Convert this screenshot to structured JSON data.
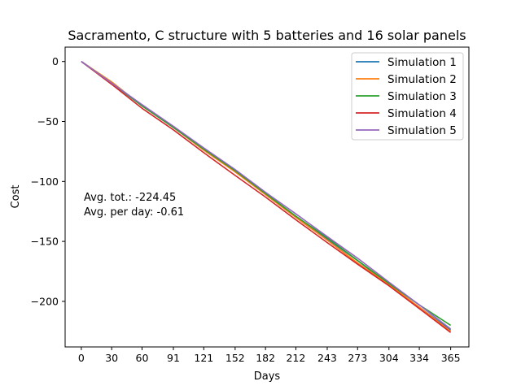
{
  "chart_data": {
    "type": "line",
    "title": "Sacramento, C structure with 5 batteries and 16 solar panels",
    "xlabel": "Days",
    "ylabel": "Cost",
    "xlim": [
      -16,
      383
    ],
    "ylim": [
      -238,
      12
    ],
    "xticks": [
      0,
      30,
      60,
      91,
      121,
      152,
      182,
      212,
      243,
      273,
      304,
      334,
      365
    ],
    "yticks": [
      0,
      -50,
      -100,
      -150,
      -200
    ],
    "grid": false,
    "legend_position": "top-right",
    "annotation": [
      "Avg. tot.: -224.45",
      "Avg. per day: -0.61"
    ],
    "series": [
      {
        "name": "Simulation 1",
        "color": "#1f77b4",
        "x": [
          0,
          30,
          60,
          91,
          121,
          152,
          182,
          212,
          243,
          273,
          304,
          334,
          365
        ],
        "y": [
          0,
          -18,
          -37,
          -55,
          -73,
          -92,
          -110,
          -129,
          -148,
          -166,
          -186,
          -205,
          -224
        ]
      },
      {
        "name": "Simulation 2",
        "color": "#ff7f0e",
        "x": [
          0,
          30,
          60,
          91,
          121,
          152,
          182,
          212,
          243,
          273,
          304,
          334,
          365
        ],
        "y": [
          0,
          -17,
          -37,
          -55,
          -74,
          -92,
          -111,
          -130,
          -149,
          -168,
          -186,
          -205,
          -225
        ]
      },
      {
        "name": "Simulation 3",
        "color": "#2ca02c",
        "x": [
          0,
          30,
          60,
          91,
          121,
          152,
          182,
          212,
          243,
          273,
          304,
          334,
          365
        ],
        "y": [
          0,
          -18,
          -37,
          -55,
          -73,
          -91,
          -110,
          -129,
          -147,
          -166,
          -185,
          -203,
          -220
        ]
      },
      {
        "name": "Simulation 4",
        "color": "#d62728",
        "x": [
          0,
          30,
          60,
          91,
          121,
          152,
          182,
          212,
          243,
          273,
          304,
          334,
          365
        ],
        "y": [
          0,
          -19,
          -39,
          -57,
          -76,
          -95,
          -113,
          -132,
          -151,
          -169,
          -187,
          -206,
          -226
        ]
      },
      {
        "name": "Simulation 5",
        "color": "#9467bd",
        "x": [
          0,
          30,
          60,
          91,
          121,
          152,
          182,
          212,
          243,
          273,
          304,
          334,
          365
        ],
        "y": [
          0,
          -18,
          -36,
          -54,
          -72,
          -90,
          -109,
          -127,
          -146,
          -164,
          -184,
          -203,
          -223
        ]
      }
    ]
  }
}
